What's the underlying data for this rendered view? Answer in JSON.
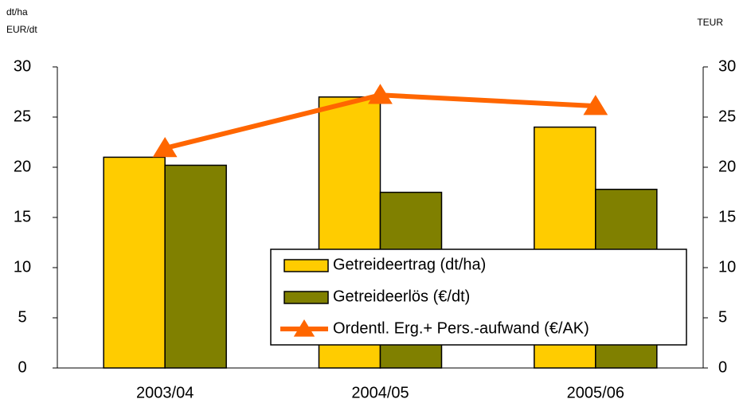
{
  "chart_data": {
    "type": "bar",
    "ylabel": [
      "dt/ha",
      "EUR/dt"
    ],
    "y2label": "TEUR",
    "categories": [
      "2003/04",
      "2004/05",
      "2005/06"
    ],
    "series": [
      {
        "name": "Getreideertrag (dt/ha)",
        "color": "#ffcc00",
        "values": [
          21,
          27,
          24
        ]
      },
      {
        "name": "Getreideerlös (€/dt)",
        "color": "#808000",
        "values": [
          20.2,
          17.5,
          17.8
        ]
      },
      {
        "name": "Ordentl. Erg.+ Pers.-aufwand (€/AK)",
        "color": "#ff6600",
        "type": "line",
        "axis": "y2",
        "values": [
          21.9,
          27.2,
          26.1
        ]
      }
    ],
    "ylim": [
      0,
      30
    ],
    "yticks": [
      0,
      5,
      10,
      15,
      20,
      25,
      30
    ],
    "y2lim": [
      0,
      30
    ],
    "y2ticks": [
      0,
      5,
      10,
      15,
      20,
      25,
      30
    ],
    "grid": false,
    "legend": "lower right"
  }
}
